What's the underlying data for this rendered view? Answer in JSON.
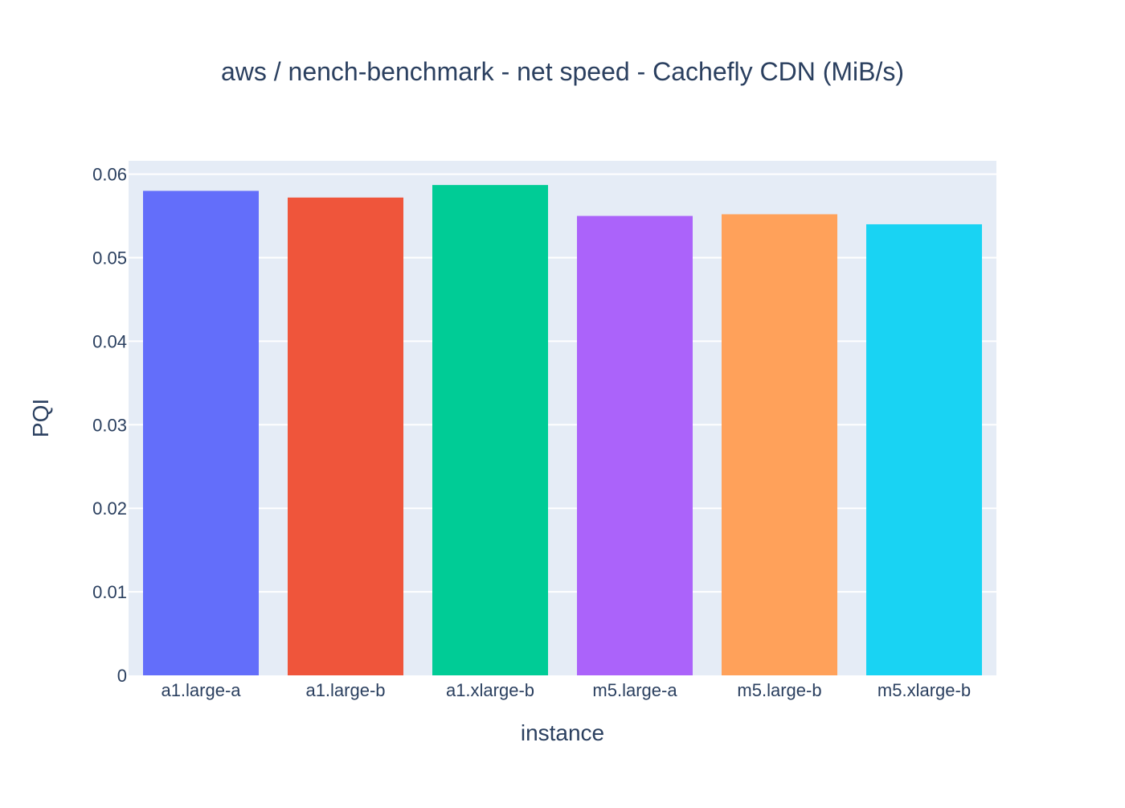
{
  "chart_data": {
    "type": "bar",
    "title": "aws / nench-benchmark - net speed - Cachefly CDN (MiB/s)",
    "xlabel": "instance",
    "ylabel": "PQI",
    "categories": [
      "a1.large-a",
      "a1.large-b",
      "a1.xlarge-b",
      "m5.large-a",
      "m5.large-b",
      "m5.xlarge-b"
    ],
    "values": [
      0.058,
      0.0572,
      0.0587,
      0.055,
      0.0552,
      0.054
    ],
    "colors": [
      "#636efa",
      "#ef553b",
      "#00cc96",
      "#ab63fa",
      "#ffa15a",
      "#19d3f3"
    ],
    "ylim": [
      0,
      0.0616
    ],
    "yticks": [
      0,
      0.01,
      0.02,
      0.03,
      0.04,
      0.05,
      0.06
    ],
    "ytick_labels": [
      "0",
      "0.01",
      "0.02",
      "0.03",
      "0.04",
      "0.05",
      "0.06"
    ],
    "grid": true,
    "legend": "none",
    "plot_background": "#e5ecf6",
    "gridline_color": "#ffffff",
    "text_color": "#2a3f5f"
  }
}
